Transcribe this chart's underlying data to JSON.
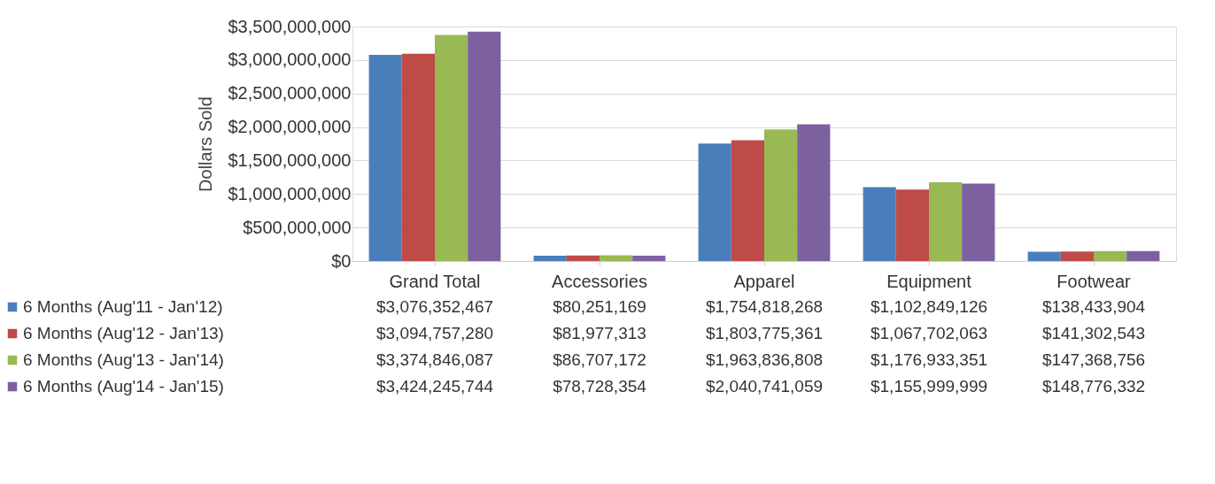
{
  "chart_data": {
    "type": "bar",
    "ylabel": "Dollars Sold",
    "categories": [
      "Grand Total",
      "Accessories",
      "Apparel",
      "Equipment",
      "Footwear"
    ],
    "series": [
      {
        "name": "6 Months (Aug'11 - Jan'12)",
        "color": "#4a7ebb",
        "values": [
          3076352467,
          80251169,
          1754818268,
          1102849126,
          138433904
        ],
        "value_labels": [
          "$3,076,352,467",
          "$80,251,169",
          "$1,754,818,268",
          "$1,102,849,126",
          "$138,433,904"
        ]
      },
      {
        "name": "6 Months (Aug'12 - Jan'13)",
        "color": "#be4b48",
        "values": [
          3094757280,
          81977313,
          1803775361,
          1067702063,
          141302543
        ],
        "value_labels": [
          "$3,094,757,280",
          "$81,977,313",
          "$1,803,775,361",
          "$1,067,702,063",
          "$141,302,543"
        ]
      },
      {
        "name": "6 Months (Aug'13 - Jan'14)",
        "color": "#98b954",
        "values": [
          3374846087,
          86707172,
          1963836808,
          1176933351,
          147368756
        ],
        "value_labels": [
          "$3,374,846,087",
          "$86,707,172",
          "$1,963,836,808",
          "$1,176,933,351",
          "$147,368,756"
        ]
      },
      {
        "name": "6 Months (Aug'14 - Jan'15)",
        "color": "#7d60a0",
        "values": [
          3424245744,
          78728354,
          2040741059,
          1155999999,
          148776332
        ],
        "value_labels": [
          "$3,424,245,744",
          "$78,728,354",
          "$2,040,741,059",
          "$1,155,999,999",
          "$148,776,332"
        ]
      }
    ],
    "ylim": [
      0,
      3500000000
    ],
    "yticks": [
      {
        "value": 0,
        "label": "$0"
      },
      {
        "value": 500000000,
        "label": "$500,000,000"
      },
      {
        "value": 1000000000,
        "label": "$1,000,000,000"
      },
      {
        "value": 1500000000,
        "label": "$1,500,000,000"
      },
      {
        "value": 2000000000,
        "label": "$2,000,000,000"
      },
      {
        "value": 2500000000,
        "label": "$2,500,000,000"
      },
      {
        "value": 3000000000,
        "label": "$3,000,000,000"
      },
      {
        "value": 3500000000,
        "label": "$3,500,000,000"
      }
    ],
    "grid": "y",
    "legend": "bottom"
  }
}
